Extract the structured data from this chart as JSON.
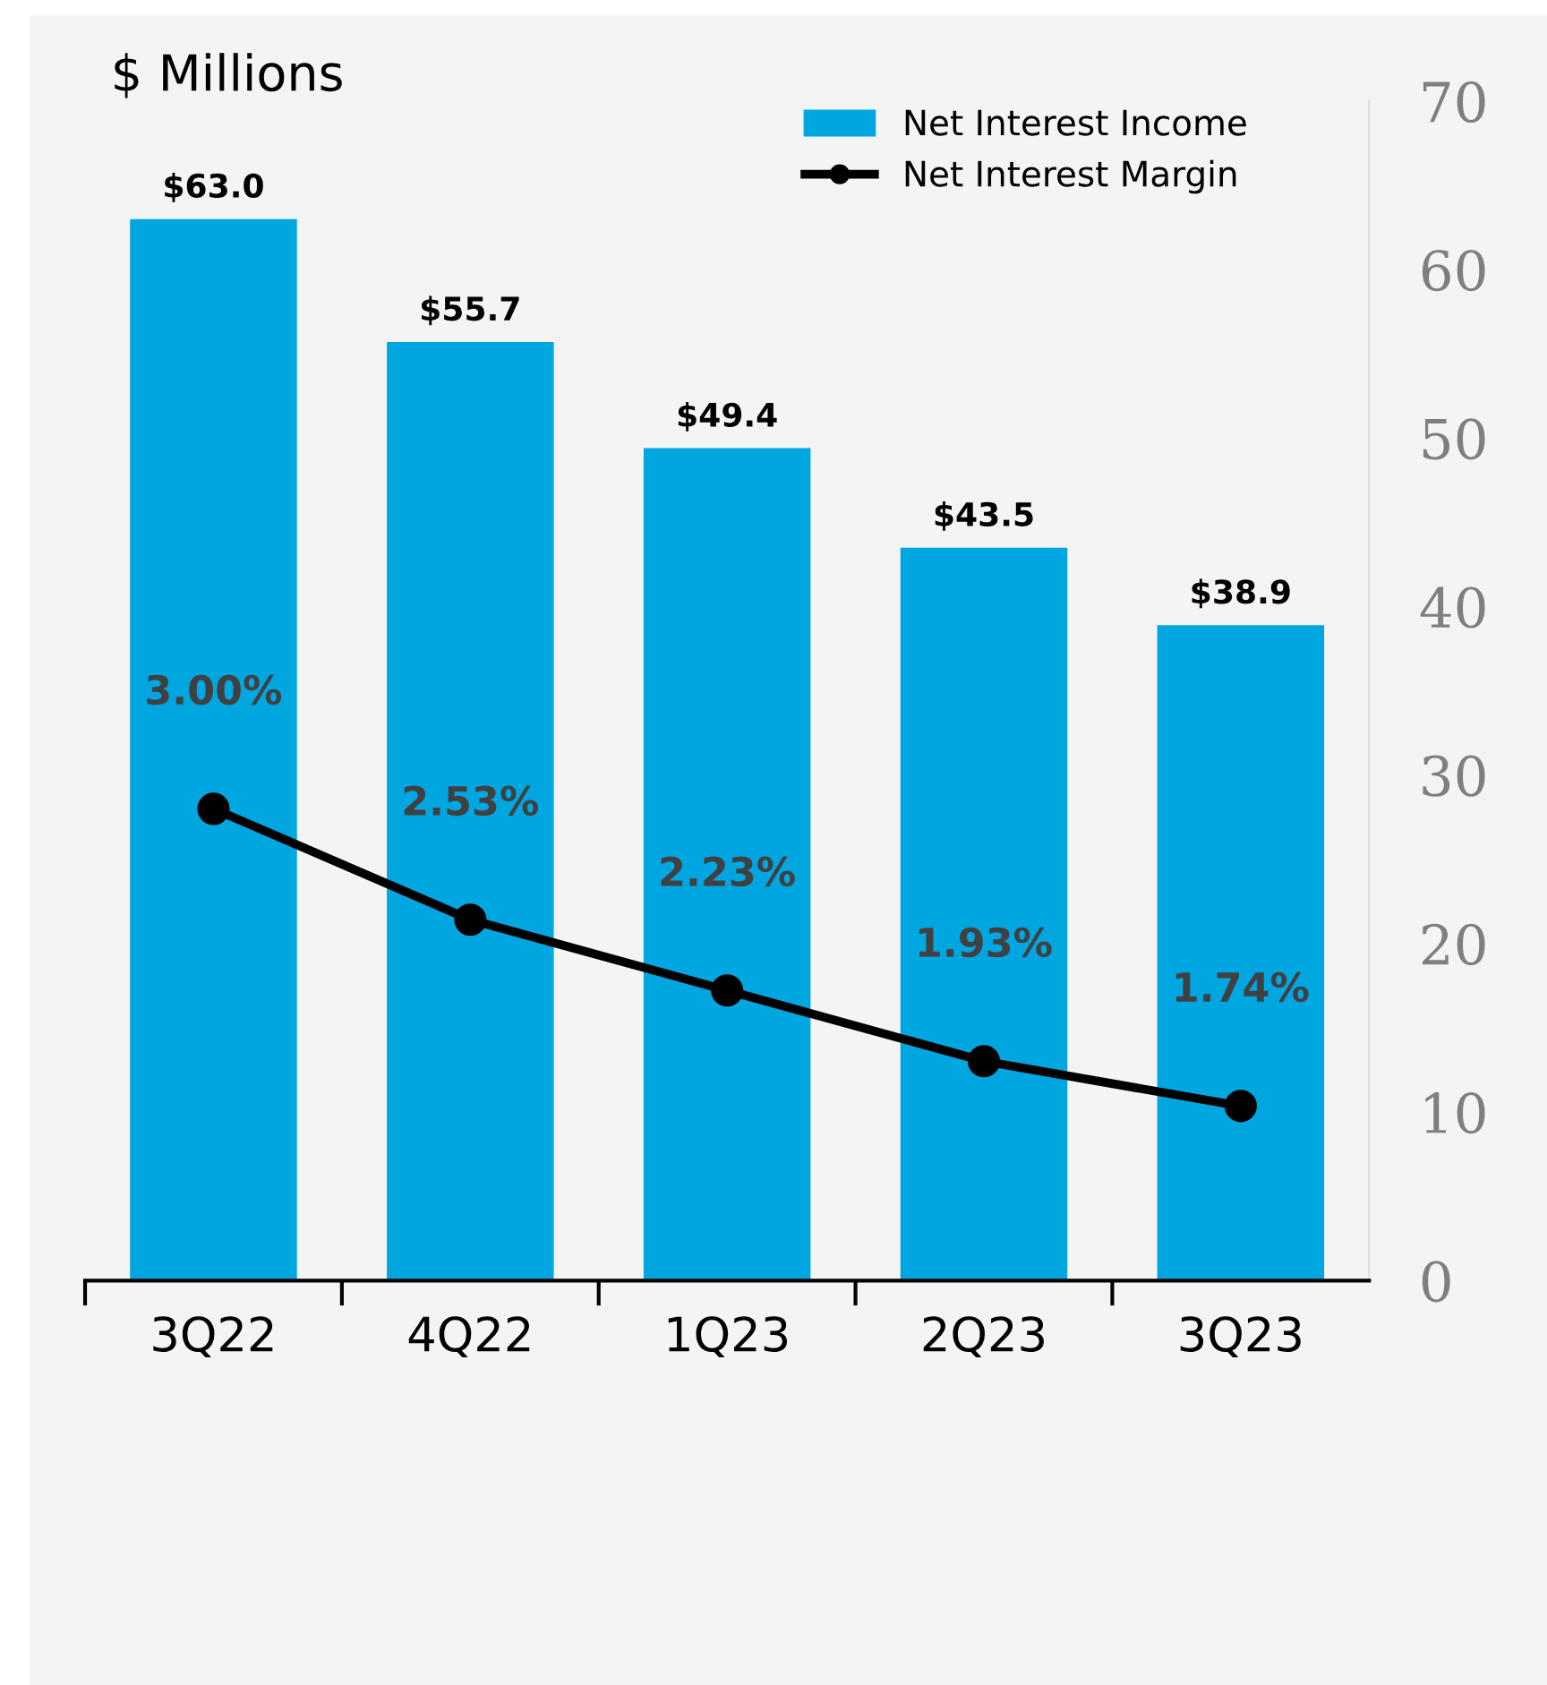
{
  "chart_data": {
    "type": "bar",
    "ylabel": "$ Millions",
    "categories": [
      "3Q22",
      "4Q22",
      "1Q23",
      "2Q23",
      "3Q23"
    ],
    "series": [
      {
        "name": "Net Interest Income",
        "color": "#00a6e0",
        "values": [
          63.0,
          55.7,
          49.4,
          43.5,
          38.9
        ],
        "value_labels": [
          "$63.0",
          "$55.7",
          "$49.4",
          "$43.5",
          "$38.9"
        ]
      },
      {
        "type": "line",
        "name": "Net Interest Margin",
        "color": "#000000",
        "axis": "y2",
        "values": [
          3.0,
          2.53,
          2.23,
          1.93,
          1.74
        ],
        "value_labels": [
          "3.00%",
          "2.53%",
          "2.23%",
          "1.93%",
          "1.74%"
        ]
      }
    ],
    "ylim": [
      0,
      70
    ],
    "yticks": [
      0,
      10,
      20,
      30,
      40,
      50,
      60,
      70
    ],
    "y2lim": [
      1,
      6
    ],
    "grid": false,
    "legend": "top right",
    "marker": "circle",
    "line_style": "solid"
  }
}
